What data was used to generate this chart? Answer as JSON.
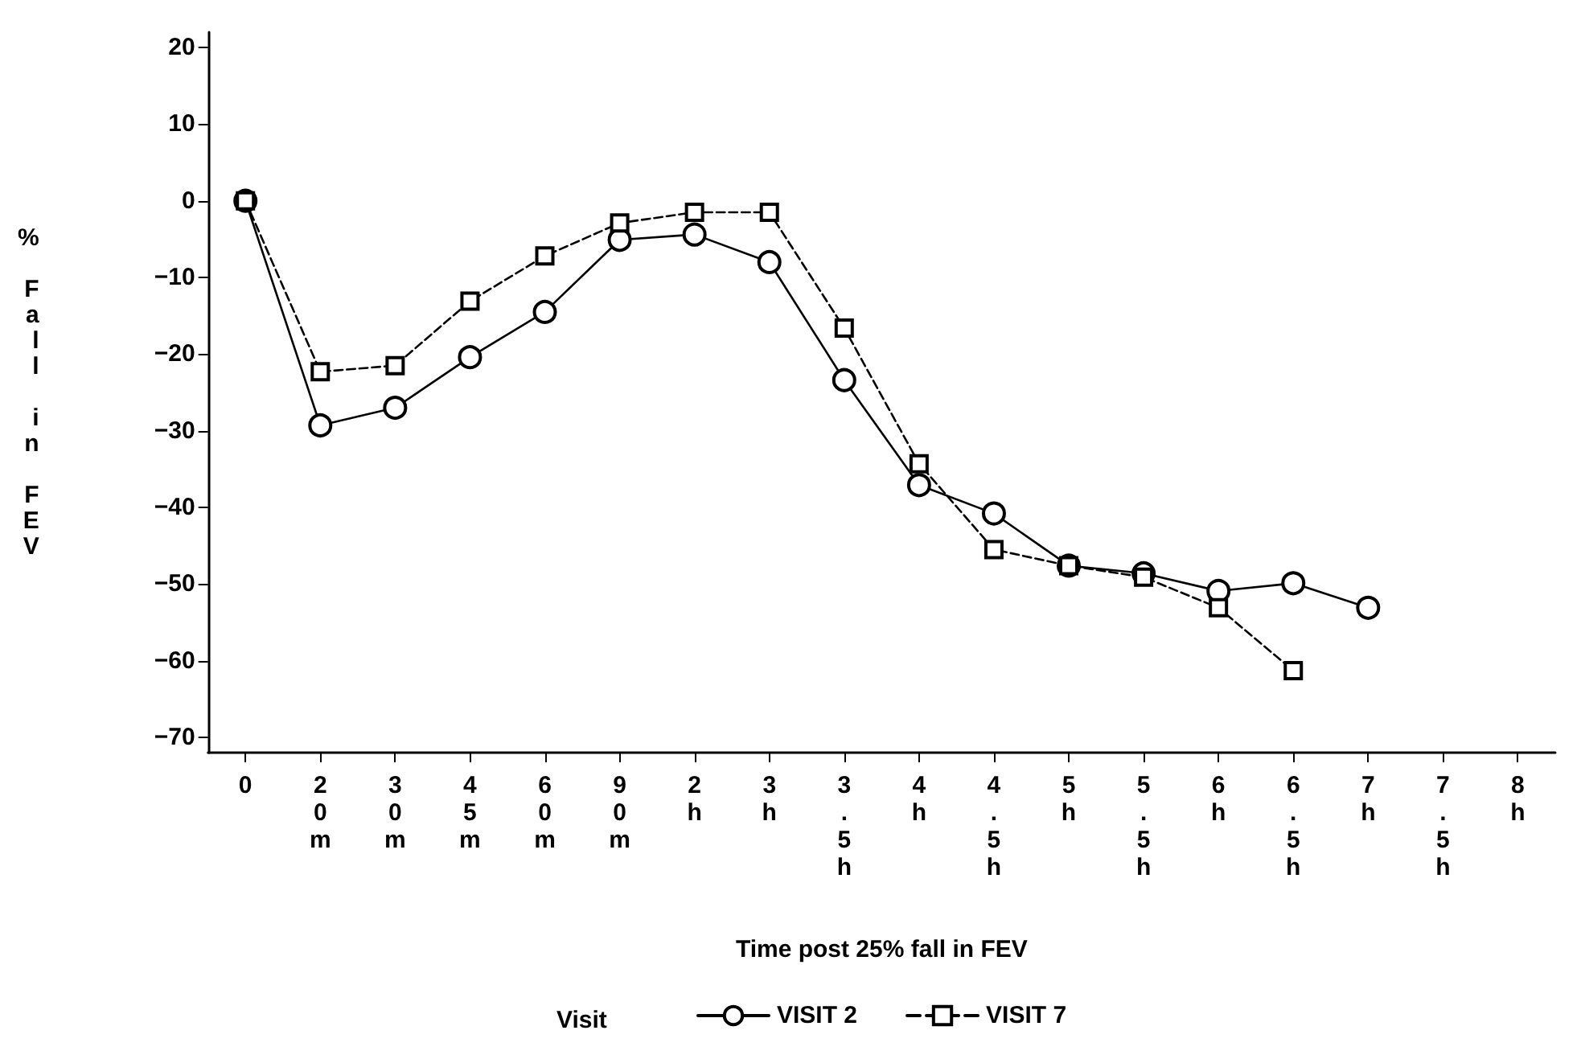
{
  "chart_data": {
    "type": "line",
    "xlabel": "Time post 25% fall in FEV",
    "ylabel": "% Fall in FEV",
    "legend_title": "Visit",
    "legend": "bottom",
    "grid": false,
    "categories": [
      "0",
      "20m",
      "30m",
      "45m",
      "60m",
      "90m",
      "2h",
      "3h",
      "3.5h",
      "4h",
      "4.5h",
      "5h",
      "5.5h",
      "6h",
      "6.5h",
      "7h",
      "7.5h",
      "8h"
    ],
    "ylim": [
      -72,
      22
    ],
    "yticks": [
      -70,
      -60,
      -50,
      -40,
      -30,
      -20,
      -10,
      0,
      10,
      20
    ],
    "series": [
      {
        "name": "VISIT 2",
        "color": "#000000",
        "marker": "circle",
        "line_style": "solid",
        "values": [
          0,
          -29.3,
          -27,
          -20.4,
          -14.5,
          -5.1,
          -4.4,
          -8,
          -23.4,
          -37.1,
          -40.8,
          -47.6,
          -48.6,
          -50.9,
          -49.9,
          -53.1,
          null,
          null
        ]
      },
      {
        "name": "VISIT 7",
        "color": "#000000",
        "marker": "square",
        "line_style": "dashed",
        "values": [
          0,
          -22.3,
          -21.5,
          -13.1,
          -7.2,
          -2.9,
          -1.5,
          -1.5,
          -16.6,
          -34.3,
          -45.5,
          -47.6,
          -49.1,
          -53.1,
          -61.3,
          null,
          null,
          null
        ]
      }
    ]
  }
}
